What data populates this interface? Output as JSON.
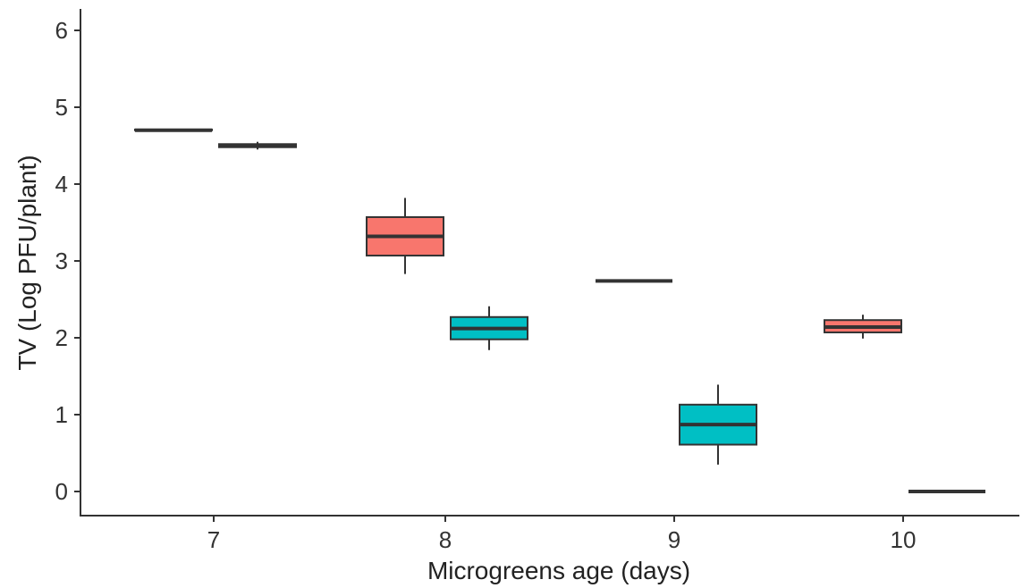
{
  "chart_data": {
    "type": "box",
    "xlabel": "Microgreens age (days)",
    "ylabel": "TV (Log PFU/plant)",
    "ylim": [
      -0.2,
      6.3
    ],
    "yticks": [
      0,
      1,
      2,
      3,
      4,
      5,
      6
    ],
    "ytick_labels": [
      "0",
      "1",
      "2",
      "3",
      "4",
      "5",
      "6"
    ],
    "categories": [
      "7",
      "8",
      "9",
      "10"
    ],
    "legend": "none",
    "grid": false,
    "groups": [
      {
        "color": "#F8766D",
        "boxes": [
          {
            "x": "7",
            "min": 4.7,
            "q1": 4.7,
            "median": 4.7,
            "q3": 4.71,
            "max": 4.71
          },
          {
            "x": "8",
            "min": 2.83,
            "q1": 3.07,
            "median": 3.32,
            "q3": 3.57,
            "max": 3.82
          },
          {
            "x": "9",
            "min": 2.74,
            "q1": 2.74,
            "median": 2.74,
            "q3": 2.74,
            "max": 2.74
          },
          {
            "x": "10",
            "min": 1.99,
            "q1": 2.07,
            "median": 2.14,
            "q3": 2.23,
            "max": 2.3
          }
        ]
      },
      {
        "color": "#00BFC4",
        "boxes": [
          {
            "x": "7",
            "min": 4.45,
            "q1": 4.48,
            "median": 4.5,
            "q3": 4.52,
            "max": 4.55
          },
          {
            "x": "8",
            "min": 1.84,
            "q1": 1.98,
            "median": 2.12,
            "q3": 2.27,
            "max": 2.41
          },
          {
            "x": "9",
            "min": 0.35,
            "q1": 0.61,
            "median": 0.87,
            "q3": 1.13,
            "max": 1.39
          },
          {
            "x": "10",
            "min": 0.0,
            "q1": 0.0,
            "median": 0.0,
            "q3": 0.0,
            "max": 0.0
          }
        ]
      }
    ]
  }
}
